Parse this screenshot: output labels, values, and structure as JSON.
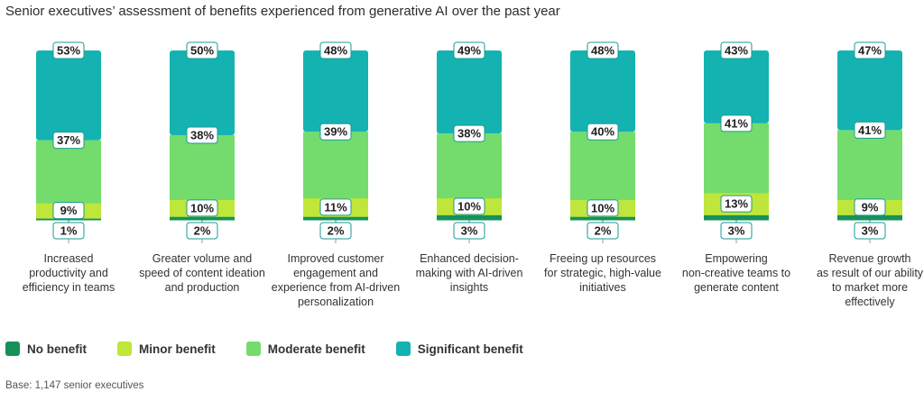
{
  "title": "Senior executives’ assessment of benefits experienced from generative AI over the past year",
  "base_note": "Base: 1,147 senior executives",
  "colors": {
    "no_benefit": "#16915a",
    "minor_benefit": "#bfe63a",
    "moderate_benefit": "#74dc6c",
    "significant_benefit": "#14b3b1"
  },
  "legend": [
    {
      "label": "No benefit",
      "color": "#16915a"
    },
    {
      "label": "Minor benefit",
      "color": "#bfe63a"
    },
    {
      "label": "Moderate benefit",
      "color": "#74dc6c"
    },
    {
      "label": "Significant benefit",
      "color": "#14b3b1"
    }
  ],
  "chart_data": {
    "type": "bar",
    "stacked": true,
    "unit": "%",
    "categories": [
      "Increased productivity and efficiency in teams",
      "Greater volume and speed of content ideation and production",
      "Improved customer engagement and experience from AI-driven personalization",
      "Enhanced decision-making with AI-driven insights",
      "Freeing up resources for strategic, high-value initiatives",
      "Empowering non-creative teams to generate content",
      "Revenue growth as result of our ability to market more effectively"
    ],
    "category_label_lines": [
      [
        "Increased",
        "productivity and",
        "efficiency in teams"
      ],
      [
        "Greater volume and",
        "speed of content ideation",
        "and production"
      ],
      [
        "Improved customer",
        "engagement and",
        "experience from AI-driven",
        "personalization"
      ],
      [
        "Enhanced decision-",
        "making with AI-driven",
        "insights"
      ],
      [
        "Freeing up resources",
        "for strategic, high-value",
        "initiatives"
      ],
      [
        "Empowering",
        "non-creative teams to",
        "generate content"
      ],
      [
        "Revenue growth",
        "as result of our ability",
        "to market more",
        "effectively"
      ]
    ],
    "series": [
      {
        "name": "No benefit",
        "values": [
          1,
          2,
          2,
          3,
          2,
          3,
          3
        ]
      },
      {
        "name": "Minor benefit",
        "values": [
          9,
          10,
          11,
          10,
          10,
          13,
          9
        ]
      },
      {
        "name": "Moderate benefit",
        "values": [
          37,
          38,
          39,
          38,
          40,
          41,
          41
        ]
      },
      {
        "name": "Significant benefit",
        "values": [
          53,
          50,
          48,
          49,
          48,
          43,
          47
        ]
      }
    ],
    "ylim": [
      0,
      100
    ],
    "grid": false,
    "legend_position": "bottom-left"
  }
}
